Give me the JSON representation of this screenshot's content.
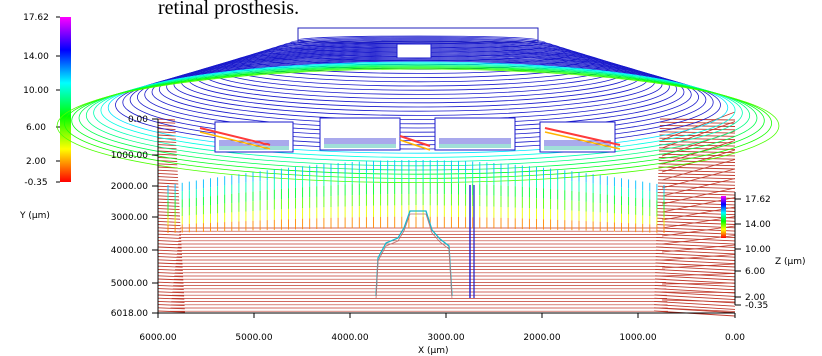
{
  "caption": "retinal prosthesis.",
  "chart_data": {
    "type": "surface",
    "view": "3D profilometry wireframe",
    "xlabel": "X (µm)",
    "ylabel": "Y (µm)",
    "zlabel": "Z (µm)",
    "x_ticks": [
      "6000.00",
      "5000.00",
      "4000.00",
      "3000.00",
      "2000.00",
      "1000.00",
      "0.00"
    ],
    "y_ticks": [
      "0.00",
      "1000.00",
      "2000.00",
      "3000.00",
      "4000.00",
      "5000.00",
      "6018.00"
    ],
    "z_ticks": [
      "17.62",
      "14.00",
      "10.00",
      "6.00",
      "2.00",
      "-0.35"
    ],
    "colorbar_ticks": [
      "17.62",
      "14.00",
      "10.00",
      "6.00",
      "2.00",
      "-0.35"
    ],
    "xlim": [
      6000,
      0
    ],
    "ylim": [
      0,
      6018
    ],
    "zlim": [
      -0.35,
      17.62
    ],
    "colormap": [
      "#ff0000",
      "#ffff00",
      "#00ff00",
      "#00ffff",
      "#0000ff",
      "#ff00ff"
    ],
    "base_color": "#c0392b"
  }
}
